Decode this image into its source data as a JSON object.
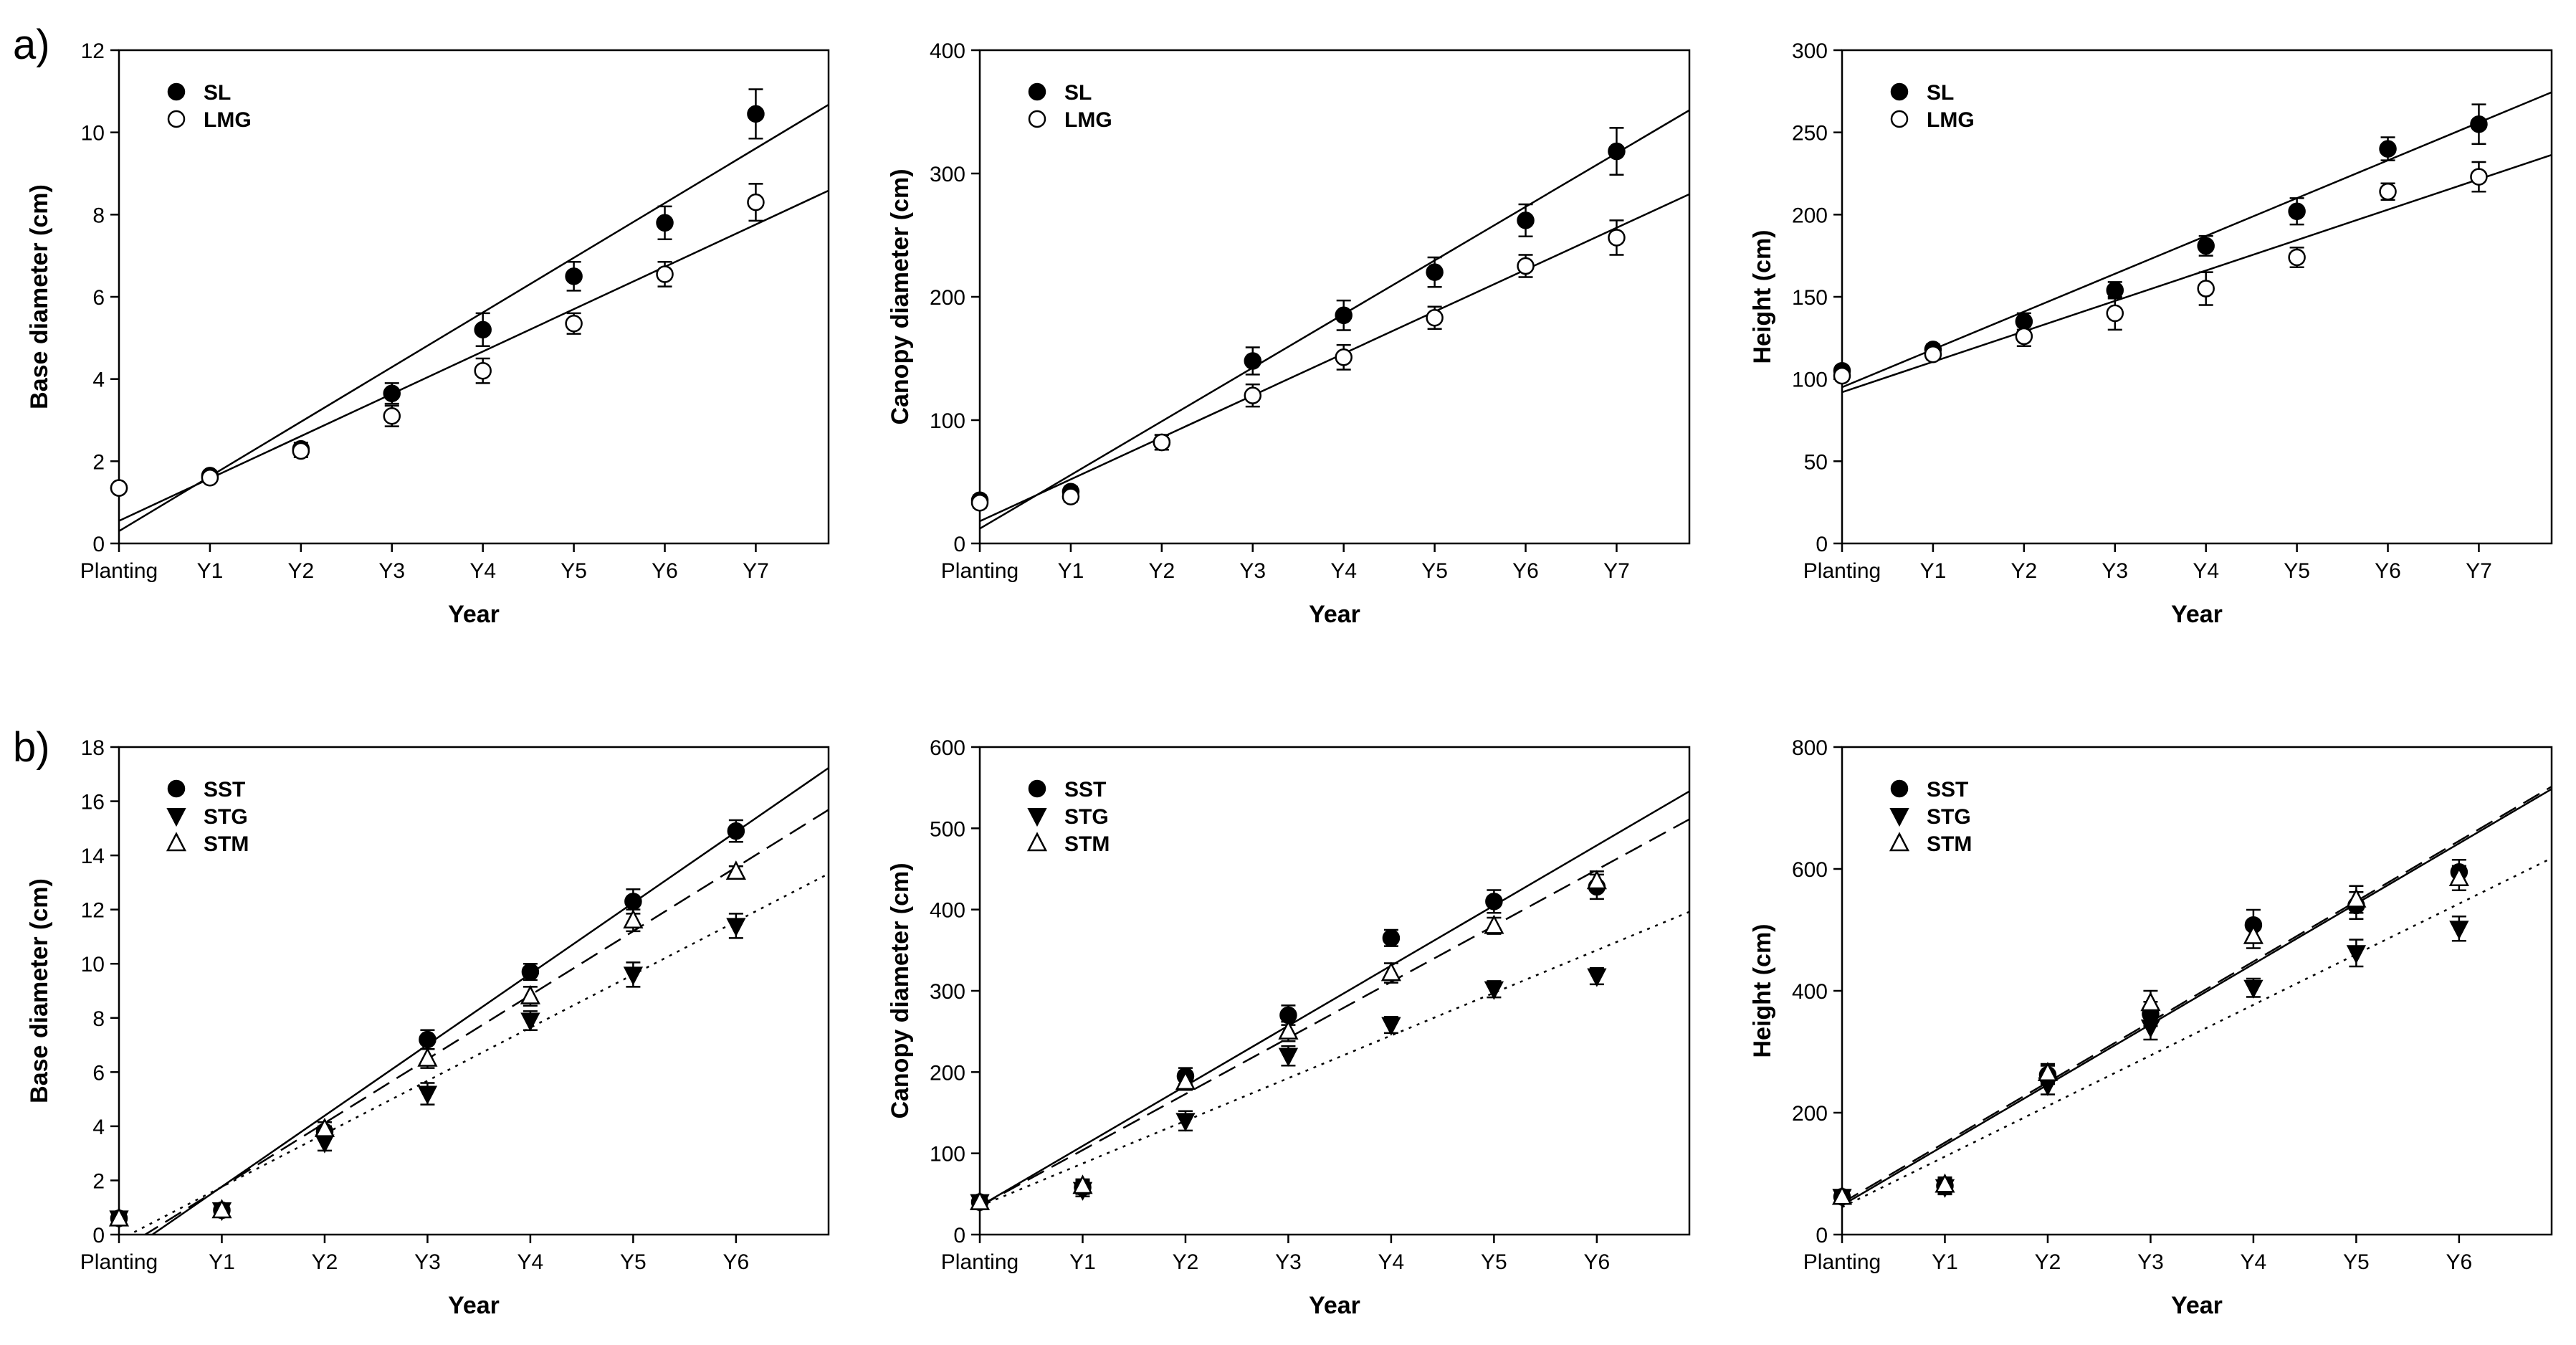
{
  "panel_labels": [
    "a)",
    "b)"
  ],
  "chart_data": [
    {
      "type": "scatter",
      "panel": "a",
      "xlabel": "Year",
      "ylabel": "Base diameter (cm)",
      "categories": [
        "Planting",
        "Y1",
        "Y2",
        "Y3",
        "Y4",
        "Y5",
        "Y6",
        "Y7"
      ],
      "xlim": [
        0,
        7.8
      ],
      "ylim": [
        0,
        12
      ],
      "yticks": [
        0,
        2,
        4,
        6,
        8,
        10,
        12
      ],
      "legend": "top-left",
      "series": [
        {
          "name": "SL",
          "marker": "filled-circle",
          "line": "solid",
          "x": [
            0,
            1,
            2,
            3,
            4,
            5,
            6,
            7
          ],
          "values": [
            1.35,
            1.65,
            2.3,
            3.65,
            5.2,
            6.5,
            7.8,
            10.45
          ],
          "errors": [
            0.1,
            0.1,
            0.15,
            0.25,
            0.4,
            0.35,
            0.4,
            0.6
          ],
          "fit": [
            0.3,
            1.33
          ]
        },
        {
          "name": "LMG",
          "marker": "open-circle",
          "line": "solid",
          "x": [
            0,
            1,
            2,
            3,
            4,
            5,
            6,
            7
          ],
          "values": [
            1.35,
            1.6,
            2.25,
            3.1,
            4.2,
            5.35,
            6.55,
            8.3
          ],
          "errors": [
            0.1,
            0.1,
            0.15,
            0.25,
            0.3,
            0.25,
            0.3,
            0.45
          ],
          "fit": [
            0.55,
            1.03
          ]
        }
      ]
    },
    {
      "type": "scatter",
      "panel": "a",
      "xlabel": "Year",
      "ylabel": "Canopy diameter (cm)",
      "categories": [
        "Planting",
        "Y1",
        "Y2",
        "Y3",
        "Y4",
        "Y5",
        "Y6",
        "Y7"
      ],
      "xlim": [
        0,
        7.8
      ],
      "ylim": [
        0,
        400
      ],
      "yticks": [
        0,
        100,
        200,
        300,
        400
      ],
      "legend": "top-left",
      "series": [
        {
          "name": "SL",
          "marker": "filled-circle",
          "line": "solid",
          "x": [
            0,
            1,
            2,
            3,
            4,
            5,
            6,
            7
          ],
          "values": [
            35,
            42,
            82,
            148,
            185,
            220,
            262,
            318
          ],
          "errors": [
            4,
            4,
            6,
            11,
            12,
            12,
            13,
            19
          ],
          "fit": [
            12,
            43.5
          ]
        },
        {
          "name": "LMG",
          "marker": "open-circle",
          "line": "solid",
          "x": [
            0,
            1,
            2,
            3,
            4,
            5,
            6,
            7
          ],
          "values": [
            33,
            38,
            82,
            120,
            151,
            183,
            225,
            248
          ],
          "errors": [
            4,
            4,
            6,
            9,
            10,
            9,
            9,
            14
          ],
          "fit": [
            18,
            34
          ]
        }
      ]
    },
    {
      "type": "scatter",
      "panel": "a",
      "xlabel": "Year",
      "ylabel": "Height (cm)",
      "categories": [
        "Planting",
        "Y1",
        "Y2",
        "Y3",
        "Y4",
        "Y5",
        "Y6",
        "Y7"
      ],
      "xlim": [
        0,
        7.8
      ],
      "ylim": [
        0,
        300
      ],
      "yticks": [
        0,
        50,
        100,
        150,
        200,
        250,
        300
      ],
      "legend": "top-left",
      "series": [
        {
          "name": "SL",
          "marker": "filled-circle",
          "line": "solid",
          "x": [
            0,
            1,
            2,
            3,
            4,
            5,
            6,
            7
          ],
          "values": [
            105,
            118,
            135,
            154,
            181,
            202,
            240,
            255
          ],
          "errors": [
            3,
            3,
            5,
            5,
            6,
            8,
            7,
            12
          ],
          "fit": [
            95,
            23
          ]
        },
        {
          "name": "LMG",
          "marker": "open-circle",
          "line": "solid",
          "x": [
            0,
            1,
            2,
            3,
            4,
            5,
            6,
            7
          ],
          "values": [
            102,
            115,
            126,
            140,
            155,
            174,
            214,
            223
          ],
          "errors": [
            3,
            3,
            6,
            10,
            10,
            6,
            5,
            9
          ],
          "fit": [
            92,
            18.5
          ]
        }
      ]
    },
    {
      "type": "scatter",
      "panel": "b",
      "xlabel": "Year",
      "ylabel": "Base diameter (cm)",
      "categories": [
        "Planting",
        "Y1",
        "Y2",
        "Y3",
        "Y4",
        "Y5",
        "Y6"
      ],
      "xlim": [
        0,
        6.9
      ],
      "ylim": [
        0,
        18
      ],
      "yticks": [
        0,
        2,
        4,
        6,
        8,
        10,
        12,
        14,
        16,
        18
      ],
      "legend": "top-left",
      "series": [
        {
          "name": "SST",
          "marker": "filled-circle",
          "line": "solid",
          "x": [
            0,
            1,
            2,
            3,
            4,
            5,
            6
          ],
          "values": [
            0.6,
            0.9,
            3.8,
            7.2,
            9.7,
            12.3,
            14.9
          ],
          "errors": [
            0.1,
            0.1,
            0.2,
            0.35,
            0.3,
            0.45,
            0.4
          ],
          "fit": [
            -0.85,
            2.62
          ]
        },
        {
          "name": "STG",
          "marker": "filled-triangle-down",
          "line": "dashed",
          "x": [
            0,
            1,
            2,
            3,
            4,
            5,
            6
          ],
          "values": [
            0.6,
            0.9,
            3.4,
            5.2,
            7.9,
            9.6,
            11.4
          ],
          "errors": [
            0.1,
            0.1,
            0.3,
            0.4,
            0.35,
            0.45,
            0.45
          ],
          "fit": [
            -0.6,
            2.36
          ]
        },
        {
          "name": "STM",
          "marker": "open-triangle-up",
          "line": "dotted",
          "x": [
            0,
            1,
            2,
            3,
            4,
            5,
            6
          ],
          "values": [
            0.6,
            0.9,
            3.9,
            6.5,
            8.8,
            11.6,
            13.4
          ],
          "errors": [
            0.1,
            0.1,
            0.25,
            0.35,
            0.35,
            0.4,
            0.2
          ],
          "fit": [
            -0.2,
            1.96
          ]
        }
      ]
    },
    {
      "type": "scatter",
      "panel": "b",
      "xlabel": "Year",
      "ylabel": "Canopy diameter (cm)",
      "categories": [
        "Planting",
        "Y1",
        "Y2",
        "Y3",
        "Y4",
        "Y5",
        "Y6"
      ],
      "xlim": [
        0,
        6.9
      ],
      "ylim": [
        0,
        600
      ],
      "yticks": [
        0,
        100,
        200,
        300,
        400,
        500,
        600
      ],
      "legend": "top-left",
      "series": [
        {
          "name": "SST",
          "marker": "filled-circle",
          "line": "solid",
          "x": [
            0,
            1,
            2,
            3,
            4,
            5,
            6
          ],
          "values": [
            40,
            58,
            195,
            270,
            365,
            410,
            428
          ],
          "errors": [
            4,
            8,
            10,
            12,
            10,
            14,
            15
          ],
          "fit": [
            35,
            74
          ]
        },
        {
          "name": "STG",
          "marker": "filled-triangle-down",
          "line": "dashed",
          "x": [
            0,
            1,
            2,
            3,
            4,
            5,
            6
          ],
          "values": [
            40,
            55,
            140,
            220,
            258,
            302,
            318
          ],
          "errors": [
            4,
            8,
            12,
            12,
            10,
            10,
            10
          ],
          "fit": [
            35,
            69
          ]
        },
        {
          "name": "STM",
          "marker": "open-triangle-up",
          "line": "dotted",
          "x": [
            0,
            1,
            2,
            3,
            4,
            5,
            6
          ],
          "values": [
            40,
            60,
            188,
            250,
            322,
            380,
            435
          ],
          "errors": [
            4,
            8,
            10,
            12,
            12,
            10,
            12
          ],
          "fit": [
            35,
            52.5
          ]
        }
      ]
    },
    {
      "type": "scatter",
      "panel": "b",
      "xlabel": "Year",
      "ylabel": "Height (cm)",
      "categories": [
        "Planting",
        "Y1",
        "Y2",
        "Y3",
        "Y4",
        "Y5",
        "Y6"
      ],
      "xlim": [
        0,
        6.9
      ],
      "ylim": [
        0,
        800
      ],
      "yticks": [
        0,
        200,
        400,
        600,
        800
      ],
      "legend": "top-left",
      "series": [
        {
          "name": "SST",
          "marker": "filled-circle",
          "line": "solid",
          "x": [
            0,
            1,
            2,
            3,
            4,
            5,
            6
          ],
          "values": [
            62,
            80,
            262,
            362,
            508,
            540,
            595
          ],
          "errors": [
            6,
            12,
            15,
            20,
            25,
            22,
            20
          ],
          "fit": [
            48,
            99
          ]
        },
        {
          "name": "STG",
          "marker": "filled-triangle-down",
          "line": "dashed",
          "x": [
            0,
            1,
            2,
            3,
            4,
            5,
            6
          ],
          "values": [
            62,
            78,
            245,
            340,
            405,
            462,
            502
          ],
          "errors": [
            6,
            12,
            15,
            20,
            15,
            22,
            20
          ],
          "fit": [
            52,
            99
          ]
        },
        {
          "name": "STM",
          "marker": "open-triangle-up",
          "line": "dotted",
          "x": [
            0,
            1,
            2,
            3,
            4,
            5,
            6
          ],
          "values": [
            62,
            82,
            265,
            380,
            490,
            550,
            585
          ],
          "errors": [
            6,
            12,
            15,
            20,
            20,
            22,
            20
          ],
          "fit": [
            45,
            83
          ]
        }
      ]
    }
  ]
}
